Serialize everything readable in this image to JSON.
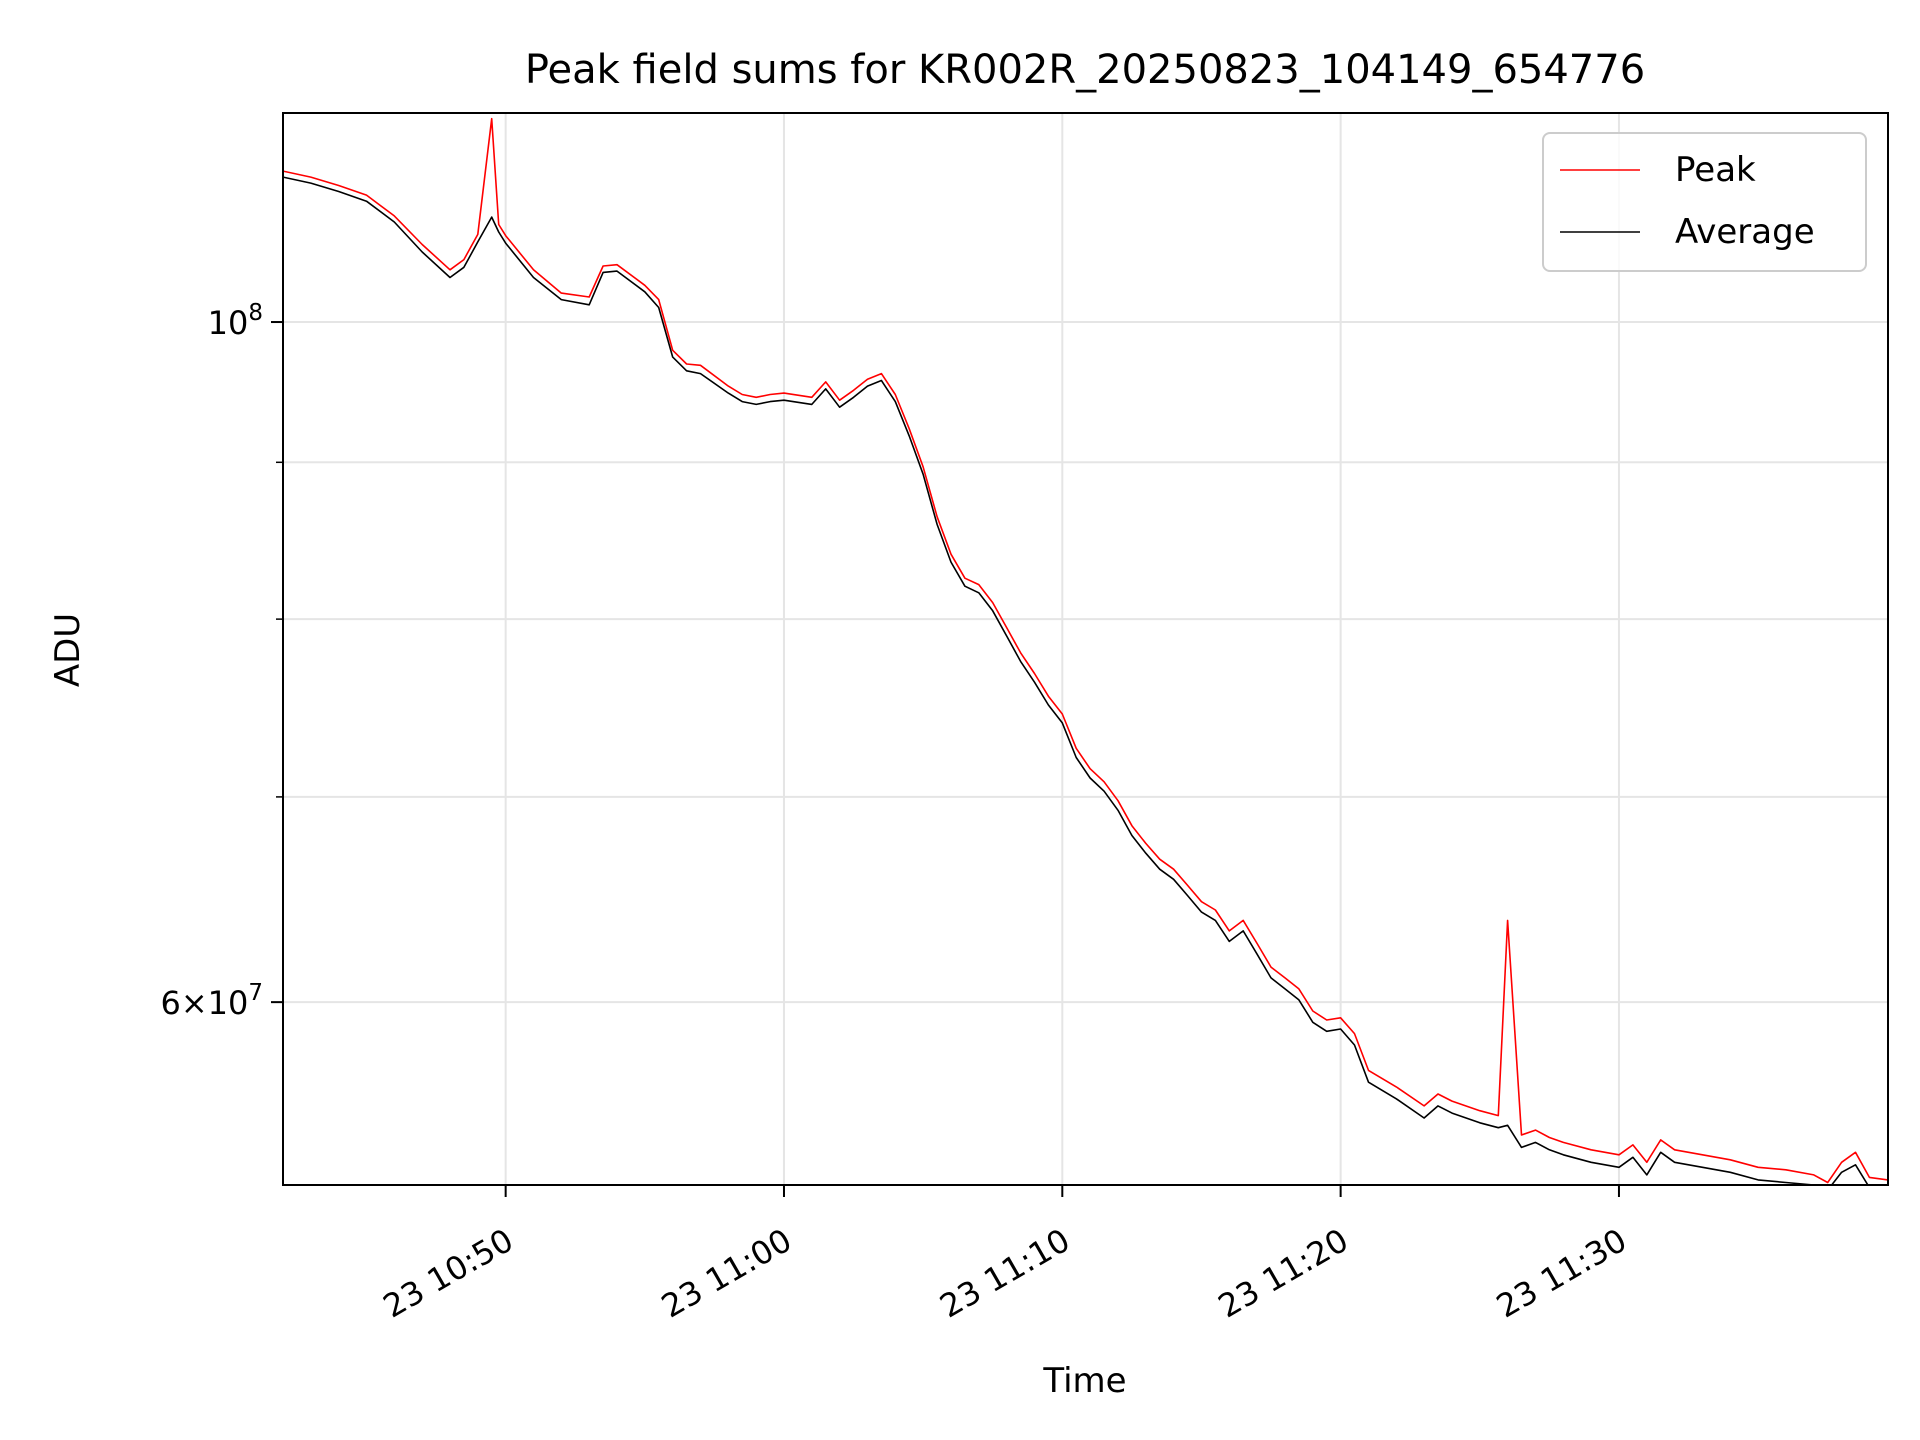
{
  "chart_data": {
    "type": "line",
    "title": "Peak field sums for KR002R_20250823_104149_654776",
    "xlabel": "Time",
    "ylabel": "ADU",
    "x_unit": "time of day (hh:mm), day 23",
    "xlim": [
      "10:42:00",
      "11:39:40"
    ],
    "ylim": [
      52300000,
      117000000
    ],
    "y_scale": "log",
    "x_ticks": [
      "10:50",
      "11:00",
      "11:10",
      "11:20",
      "11:30"
    ],
    "x_tick_labels": [
      "23 10:50",
      "23 11:00",
      "23 11:10",
      "23 11:20",
      "23 11:30"
    ],
    "y_major_ticks": [
      60000000,
      100000000
    ],
    "y_major_tick_labels": [
      {
        "base": "6×10",
        "exp": "7"
      },
      {
        "base": "10",
        "exp": "8"
      }
    ],
    "y_minor_ticks": [
      70000000,
      80000000,
      90000000
    ],
    "grid": true,
    "legend_position": "upper right",
    "series": [
      {
        "name": "Peak",
        "color": "#ff0000",
        "x": [
          "10:42:00",
          "10:43:00",
          "10:44:00",
          "10:45:00",
          "10:46:00",
          "10:47:00",
          "10:48:00",
          "10:48:30",
          "10:49:00",
          "10:49:30",
          "10:49:45",
          "10:50:00",
          "10:51:00",
          "10:52:00",
          "10:53:00",
          "10:53:30",
          "10:54:00",
          "10:55:00",
          "10:55:30",
          "10:56:00",
          "10:56:30",
          "10:57:00",
          "10:58:00",
          "10:58:30",
          "10:59:00",
          "10:59:30",
          "11:00:00",
          "11:01:00",
          "11:01:30",
          "11:02:00",
          "11:02:30",
          "11:03:00",
          "11:03:30",
          "11:04:00",
          "11:04:30",
          "11:05:00",
          "11:05:30",
          "11:06:00",
          "11:06:30",
          "11:07:00",
          "11:07:30",
          "11:08:00",
          "11:08:30",
          "11:09:00",
          "11:09:30",
          "11:10:00",
          "11:10:30",
          "11:11:00",
          "11:11:30",
          "11:12:00",
          "11:12:30",
          "11:13:00",
          "11:13:30",
          "11:14:00",
          "11:14:30",
          "11:15:00",
          "11:15:30",
          "11:16:00",
          "11:16:30",
          "11:17:00",
          "11:17:30",
          "11:18:00",
          "11:18:30",
          "11:19:00",
          "11:19:30",
          "11:20:00",
          "11:20:30",
          "11:21:00",
          "11:22:00",
          "11:23:00",
          "11:23:30",
          "11:24:00",
          "11:25:00",
          "11:25:40",
          "11:26:00",
          "11:26:30",
          "11:27:00",
          "11:27:30",
          "11:28:00",
          "11:29:00",
          "11:30:00",
          "11:30:30",
          "11:31:00",
          "11:31:30",
          "11:32:00",
          "11:33:00",
          "11:34:00",
          "11:35:00",
          "11:36:00",
          "11:37:00",
          "11:37:30",
          "11:38:00",
          "11:38:30",
          "11:39:00",
          "11:39:40"
        ],
        "y": [
          112000000,
          111500000,
          110800000,
          110000000,
          108300000,
          106000000,
          104000000,
          104800000,
          106800000,
          116500000,
          107600000,
          106700000,
          104000000,
          102200000,
          101900000,
          104300000,
          104400000,
          102800000,
          101700000,
          97900000,
          96900000,
          96800000,
          95300000,
          94700000,
          94500000,
          94700000,
          94800000,
          94500000,
          95600000,
          94300000,
          95000000,
          95800000,
          96200000,
          94700000,
          92300000,
          89700000,
          86400000,
          84000000,
          82500000,
          82100000,
          81000000,
          79500000,
          78000000,
          76800000,
          75500000,
          74500000,
          72600000,
          71500000,
          70800000,
          69800000,
          68500000,
          67600000,
          66800000,
          66300000,
          65500000,
          64700000,
          64300000,
          63300000,
          63800000,
          62700000,
          61600000,
          61100000,
          60600000,
          59600000,
          59200000,
          59300000,
          58600000,
          57000000,
          56300000,
          55500000,
          56000000,
          55700000,
          55300000,
          55100000,
          63800000,
          54300000,
          54500000,
          54200000,
          54000000,
          53700000,
          53500000,
          53900000,
          53200000,
          54100000,
          53700000,
          53500000,
          53300000,
          53000000,
          52900000,
          52700000,
          52400000,
          53200000,
          53600000,
          52600000,
          52500000
        ]
      },
      {
        "name": "Average",
        "color": "#000000",
        "x": [
          "10:42:00",
          "10:43:00",
          "10:44:00",
          "10:45:00",
          "10:46:00",
          "10:47:00",
          "10:48:00",
          "10:48:30",
          "10:49:00",
          "10:49:30",
          "10:49:45",
          "10:50:00",
          "10:51:00",
          "10:52:00",
          "10:53:00",
          "10:53:30",
          "10:54:00",
          "10:55:00",
          "10:55:30",
          "10:56:00",
          "10:56:30",
          "10:57:00",
          "10:58:00",
          "10:58:30",
          "10:59:00",
          "10:59:30",
          "11:00:00",
          "11:01:00",
          "11:01:30",
          "11:02:00",
          "11:02:30",
          "11:03:00",
          "11:03:30",
          "11:04:00",
          "11:04:30",
          "11:05:00",
          "11:05:30",
          "11:06:00",
          "11:06:30",
          "11:07:00",
          "11:07:30",
          "11:08:00",
          "11:08:30",
          "11:09:00",
          "11:09:30",
          "11:10:00",
          "11:10:30",
          "11:11:00",
          "11:11:30",
          "11:12:00",
          "11:12:30",
          "11:13:00",
          "11:13:30",
          "11:14:00",
          "11:14:30",
          "11:15:00",
          "11:15:30",
          "11:16:00",
          "11:16:30",
          "11:17:00",
          "11:17:30",
          "11:18:00",
          "11:18:30",
          "11:19:00",
          "11:19:30",
          "11:20:00",
          "11:20:30",
          "11:21:00",
          "11:22:00",
          "11:23:00",
          "11:23:30",
          "11:24:00",
          "11:25:00",
          "11:25:40",
          "11:26:00",
          "11:26:30",
          "11:27:00",
          "11:27:30",
          "11:28:00",
          "11:29:00",
          "11:30:00",
          "11:30:30",
          "11:31:00",
          "11:31:30",
          "11:32:00",
          "11:33:00",
          "11:34:00",
          "11:35:00",
          "11:36:00",
          "11:37:00",
          "11:37:30",
          "11:38:00",
          "11:38:30",
          "11:39:00",
          "11:39:40"
        ],
        "y": [
          111500000,
          111000000,
          110300000,
          109500000,
          107800000,
          105400000,
          103400000,
          104200000,
          106200000,
          108200000,
          107000000,
          106100000,
          103400000,
          101700000,
          101300000,
          103800000,
          103900000,
          102300000,
          101100000,
          97400000,
          96400000,
          96200000,
          94800000,
          94200000,
          94000000,
          94200000,
          94300000,
          94000000,
          95100000,
          93800000,
          94500000,
          95300000,
          95700000,
          94200000,
          91800000,
          89200000,
          85900000,
          83500000,
          82000000,
          81600000,
          80500000,
          79000000,
          77500000,
          76300000,
          75000000,
          74000000,
          72100000,
          71000000,
          70300000,
          69300000,
          68000000,
          67100000,
          66300000,
          65800000,
          65000000,
          64200000,
          63800000,
          62800000,
          63300000,
          62200000,
          61100000,
          60600000,
          60100000,
          59100000,
          58700000,
          58800000,
          58100000,
          56500000,
          55800000,
          55000000,
          55500000,
          55200000,
          54800000,
          54600000,
          54700000,
          53800000,
          54000000,
          53700000,
          53500000,
          53200000,
          53000000,
          53400000,
          52700000,
          53600000,
          53200000,
          53000000,
          52800000,
          52500000,
          52400000,
          52300000,
          52100000,
          52800000,
          53100000,
          52200000,
          52100000
        ]
      }
    ]
  }
}
